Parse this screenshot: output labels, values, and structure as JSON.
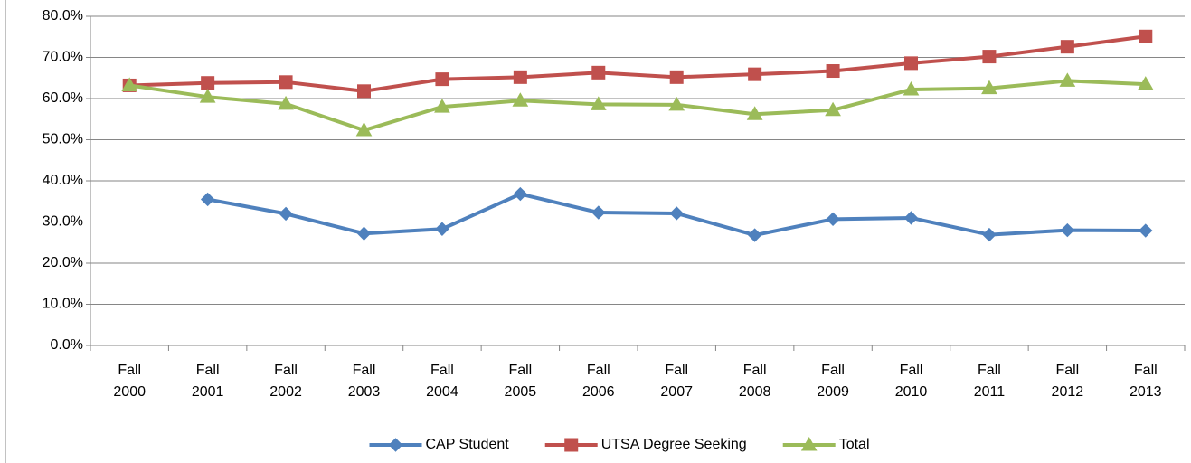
{
  "chart_data": {
    "type": "line",
    "categories": [
      "Fall 2000",
      "Fall 2001",
      "Fall 2002",
      "Fall 2003",
      "Fall 2004",
      "Fall 2005",
      "Fall 2006",
      "Fall 2007",
      "Fall 2008",
      "Fall 2009",
      "Fall 2010",
      "Fall 2011",
      "Fall 2012",
      "Fall 2013"
    ],
    "series": [
      {
        "name": "CAP Student",
        "color": "#4f81bd",
        "marker": "diamond",
        "values": [
          null,
          35.5,
          32.0,
          27.2,
          28.3,
          36.8,
          32.3,
          32.1,
          26.8,
          30.7,
          31.0,
          26.9,
          28.0,
          27.9
        ]
      },
      {
        "name": "UTSA Degree Seeking",
        "color": "#c0504d",
        "marker": "square",
        "values": [
          63.2,
          63.8,
          64.0,
          61.8,
          64.7,
          65.2,
          66.3,
          65.2,
          65.9,
          66.7,
          68.6,
          70.2,
          72.6,
          75.1
        ]
      },
      {
        "name": "Total",
        "color": "#9bbb59",
        "marker": "triangle",
        "values": [
          63.2,
          60.4,
          58.7,
          52.3,
          58.0,
          59.5,
          58.6,
          58.5,
          56.2,
          57.2,
          62.2,
          62.5,
          64.3,
          63.5
        ]
      }
    ],
    "ylim": [
      0,
      80
    ],
    "yticks": [
      {
        "value": 0,
        "label": "0.0%"
      },
      {
        "value": 10,
        "label": "10.0%"
      },
      {
        "value": 20,
        "label": "20.0%"
      },
      {
        "value": 30,
        "label": "30.0%"
      },
      {
        "value": 40,
        "label": "40.0%"
      },
      {
        "value": 50,
        "label": "50.0%"
      },
      {
        "value": 60,
        "label": "60.0%"
      },
      {
        "value": 70,
        "label": "70.0%"
      },
      {
        "value": 80,
        "label": "80.0%"
      }
    ],
    "grid": true,
    "legend": "bottom"
  }
}
